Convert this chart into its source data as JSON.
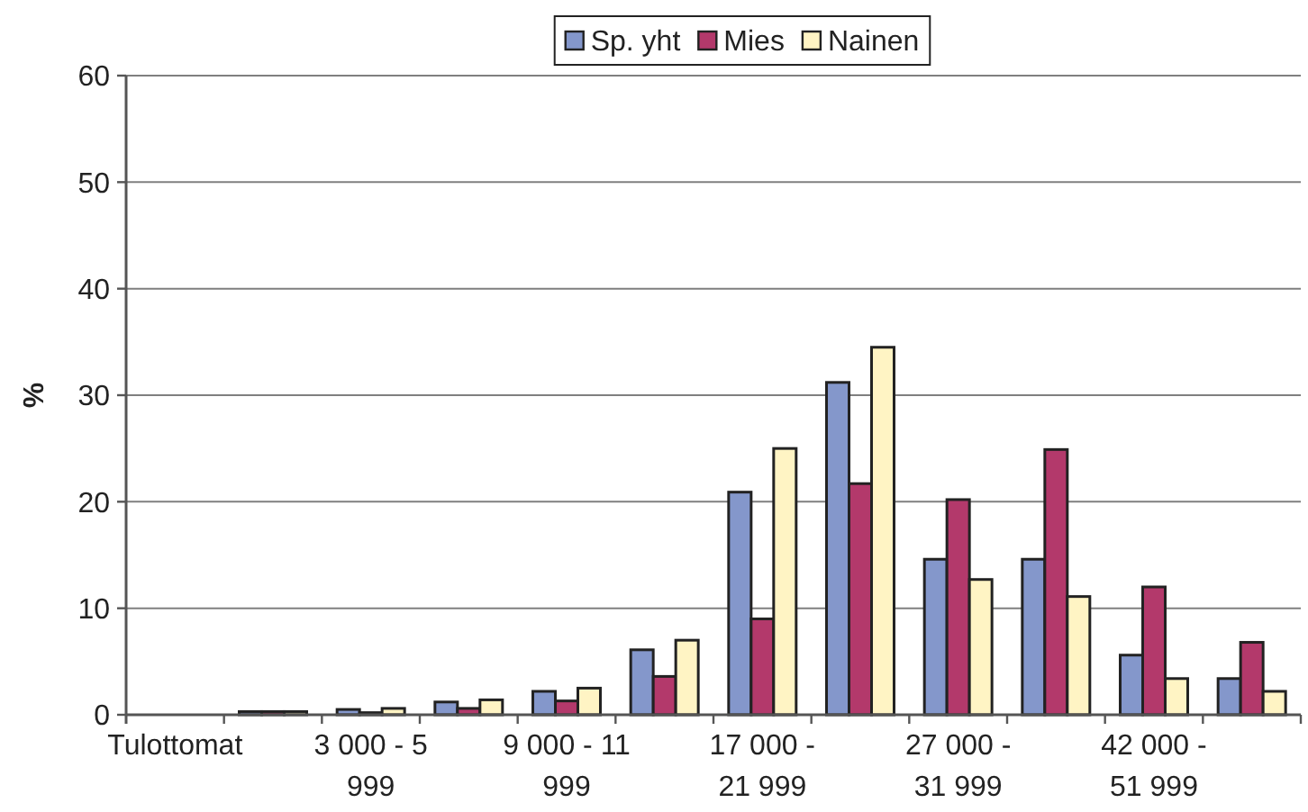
{
  "chart_data": {
    "type": "bar",
    "ylabel": "%",
    "categories": [
      "Tulottomat",
      null,
      "3 000 - 5 999",
      null,
      "9 000 - 11 999",
      null,
      "17 000 - 21 999",
      null,
      "27 000 - 31 999",
      null,
      "42 000 - 51 999",
      null
    ],
    "series": [
      {
        "name": "Sp. yht",
        "color": "#8497cb",
        "values": [
          null,
          0.3,
          0.5,
          1.2,
          2.2,
          6.1,
          20.9,
          31.2,
          14.6,
          14.6,
          5.6,
          3.4
        ]
      },
      {
        "name": "Mies",
        "color": "#b3396b",
        "values": [
          null,
          0.3,
          0.2,
          0.6,
          1.3,
          3.6,
          9.0,
          21.7,
          20.2,
          24.9,
          12.0,
          6.8
        ]
      },
      {
        "name": "Nainen",
        "color": "#fff4c4",
        "values": [
          null,
          0.3,
          0.6,
          1.4,
          2.5,
          7.0,
          25.0,
          34.5,
          12.7,
          11.1,
          3.4,
          2.2
        ]
      }
    ],
    "ylim": [
      0,
      60
    ],
    "yticks": [
      0,
      10,
      20,
      30,
      40,
      50,
      60
    ],
    "grid": "y",
    "legend": "top"
  }
}
